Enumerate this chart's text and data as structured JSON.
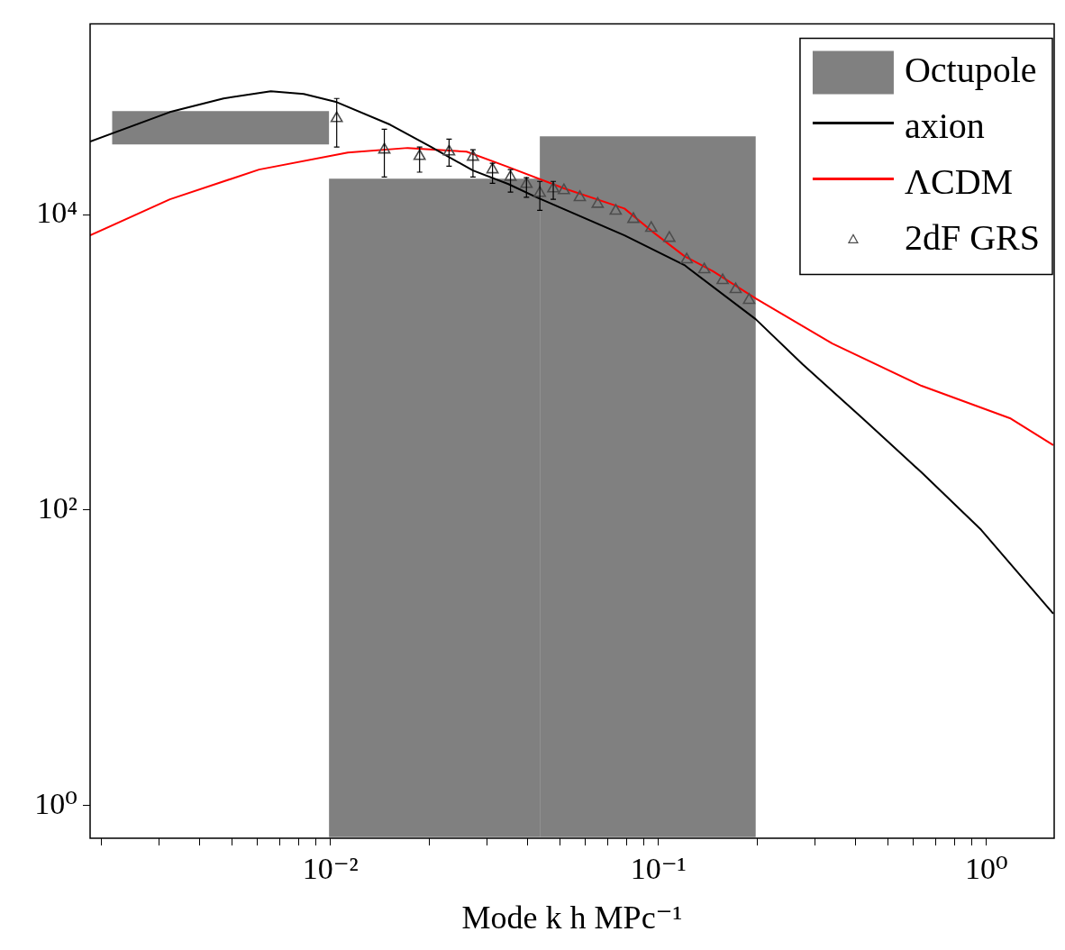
{
  "chart_data": {
    "type": "line",
    "xlabel": "Mode k h MPc⁻¹",
    "log": "xy",
    "legend": "top right",
    "xlim": [
      0.00185,
      1.61
    ],
    "ylim": [
      0.61,
      196000
    ],
    "xticks": [
      {
        "value": 0.002,
        "label": null
      },
      {
        "value": 0.003,
        "label": null
      },
      {
        "value": 0.004,
        "label": null
      },
      {
        "value": 0.005,
        "label": null
      },
      {
        "value": 0.006,
        "label": null
      },
      {
        "value": 0.007,
        "label": null
      },
      {
        "value": 0.008,
        "label": null
      },
      {
        "value": 0.009,
        "label": null
      },
      {
        "value": 0.01,
        "label": "10⁻²"
      },
      {
        "value": 0.02,
        "label": null
      },
      {
        "value": 0.03,
        "label": null
      },
      {
        "value": 0.04,
        "label": null
      },
      {
        "value": 0.05,
        "label": null
      },
      {
        "value": 0.06,
        "label": null
      },
      {
        "value": 0.07,
        "label": null
      },
      {
        "value": 0.08,
        "label": null
      },
      {
        "value": 0.09,
        "label": null
      },
      {
        "value": 0.1,
        "label": "10⁻¹"
      },
      {
        "value": 0.2,
        "label": null
      },
      {
        "value": 0.3,
        "label": null
      },
      {
        "value": 0.4,
        "label": null
      },
      {
        "value": 0.5,
        "label": null
      },
      {
        "value": 0.6,
        "label": null
      },
      {
        "value": 0.7,
        "label": null
      },
      {
        "value": 0.8,
        "label": null
      },
      {
        "value": 0.9,
        "label": null
      },
      {
        "value": 1,
        "label": "10⁰"
      }
    ],
    "yticks": [
      {
        "value": 1,
        "label": "10⁰"
      },
      {
        "value": 100,
        "label": "10²"
      },
      {
        "value": 10000,
        "label": "10⁴"
      }
    ],
    "series": [
      {
        "type": "histogram",
        "name": "Octupole",
        "color": "#808080",
        "bins": [
          0.00216,
          0.0099,
          0.0435,
          0.198
        ],
        "values": [
          20300,
          17500,
          33900
        ],
        "base": [
          29900,
          0.61,
          0.61
        ]
      },
      {
        "name": "axion",
        "color": "#000000",
        "x": [
          0.00185,
          0.00324,
          0.00472,
          0.00658,
          0.00829,
          0.01045,
          0.0152,
          0.0203,
          0.0272,
          0.0349,
          0.0422,
          0.0788,
          0.12,
          0.198,
          0.275,
          0.419,
          0.634,
          0.964,
          1.6
        ],
        "values": [
          31200,
          49500,
          61200,
          68400,
          65600,
          57800,
          40700,
          28700,
          19900,
          16100,
          13200,
          7240,
          4560,
          1960,
          973,
          419,
          180,
          73.5,
          19.9
        ]
      },
      {
        "name": "ΛCDM",
        "color": "#ff0000",
        "x": [
          0.00185,
          0.00324,
          0.00606,
          0.0113,
          0.0172,
          0.026,
          0.0343,
          0.0518,
          0.0788,
          0.0968,
          0.12,
          0.147,
          0.198,
          0.339,
          0.634,
          1.18,
          1.6
        ],
        "values": [
          7240,
          12700,
          20200,
          26300,
          28300,
          26700,
          21300,
          15000,
          11000,
          7550,
          5240,
          4130,
          2710,
          1340,
          694,
          419,
          275
        ]
      },
      {
        "type": "scatter",
        "name": "2dF GRS",
        "color": "#4d4d4d",
        "marker": "triangle",
        "x": [
          0.01045,
          0.0146,
          0.0187,
          0.023,
          0.0272,
          0.0312,
          0.0354,
          0.0396,
          0.0435,
          0.0478,
          0.0515,
          0.0576,
          0.0653,
          0.0741,
          0.0839,
          0.0951,
          0.108,
          0.122,
          0.138,
          0.157,
          0.172,
          0.189
        ],
        "values": [
          44900,
          27500,
          24900,
          26700,
          24600,
          20200,
          18000,
          16100,
          14000,
          15000,
          14600,
          13100,
          11800,
          10600,
          9330,
          8110,
          6940,
          4960,
          4250,
          3590,
          3120,
          2640
        ],
        "errors": [
          [
            28700,
            61200
          ],
          [
            18000,
            37900
          ],
          [
            19400,
            28700
          ],
          [
            21300,
            32500
          ],
          [
            18000,
            27500
          ],
          [
            16300,
            22300
          ],
          [
            14200,
            20200
          ],
          [
            13100,
            17800
          ],
          [
            10700,
            16800
          ],
          [
            12700,
            16800
          ],
          null,
          null,
          null,
          null,
          null,
          null,
          null,
          null,
          null,
          null,
          null,
          null
        ]
      }
    ]
  }
}
